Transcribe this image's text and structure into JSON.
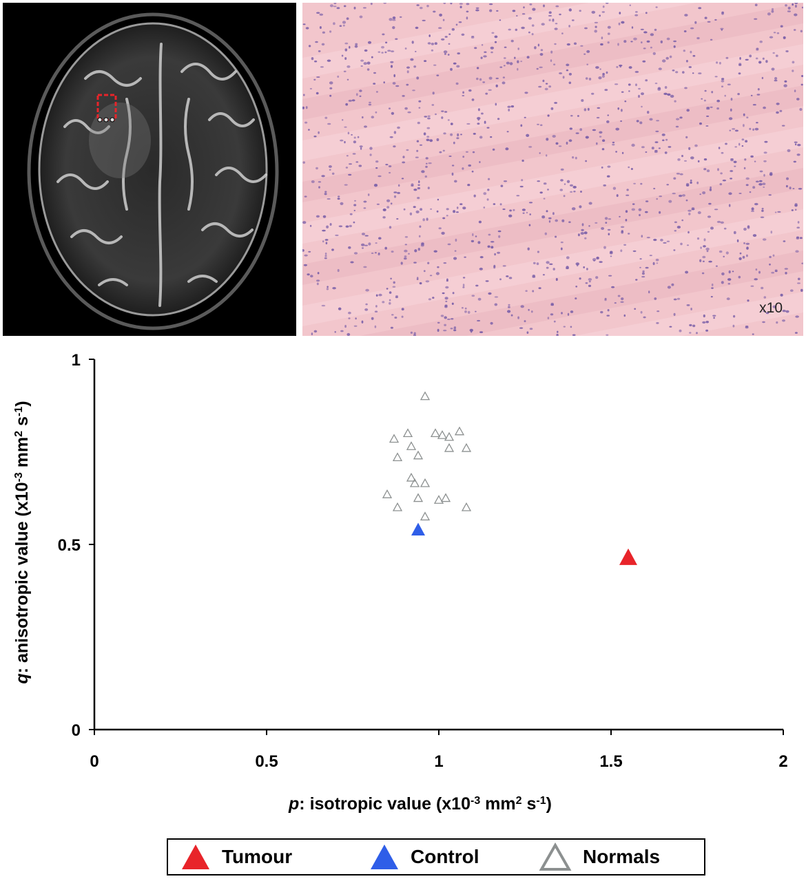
{
  "mri_image": {
    "description_icon": "brain-mri-axial-icon",
    "roi_color": "#e8242a"
  },
  "histology_image": {
    "magnification_label": "x10",
    "stain_color": "#f2c6cc",
    "nuclei_color": "#7a5fa8"
  },
  "chart_data": {
    "type": "scatter",
    "xlabel_italic": "p",
    "xlabel_rest": ": isotropic value (x10",
    "xlabel_sup1": "-3",
    "xlabel_mid": " mm",
    "xlabel_sup2": "2",
    "xlabel_s": " s",
    "xlabel_sup3": "-1",
    "xlabel_end": ")",
    "ylabel_italic": "q",
    "ylabel_rest": ": anisotropic value (x10",
    "ylabel_sup1": "-3",
    "ylabel_mid": " mm",
    "ylabel_sup2": "2",
    "ylabel_s": " s",
    "ylabel_sup3": "-1",
    "ylabel_end": ")",
    "xlim": [
      0,
      2
    ],
    "ylim": [
      0,
      1
    ],
    "x_ticks": [
      0,
      0.5,
      1,
      1.5,
      2
    ],
    "x_tick_labels": [
      "0",
      "0.5",
      "1",
      "1.5",
      "2"
    ],
    "y_ticks": [
      0,
      0.5,
      1
    ],
    "y_tick_labels": [
      "0",
      "0.5",
      "1"
    ],
    "grid": false,
    "legend_position": "bottom",
    "series": [
      {
        "name": "Tumour",
        "marker": "filled-triangle",
        "color": "#e8242a",
        "points": [
          [
            1.55,
            0.465
          ]
        ]
      },
      {
        "name": "Control",
        "marker": "filled-triangle",
        "color": "#2f5ee8",
        "points": [
          [
            0.94,
            0.54
          ]
        ]
      },
      {
        "name": "Normals",
        "marker": "hollow-triangle",
        "color": "#8c9090",
        "points": [
          [
            0.96,
            0.9
          ],
          [
            0.87,
            0.785
          ],
          [
            0.91,
            0.8
          ],
          [
            0.99,
            0.8
          ],
          [
            1.01,
            0.795
          ],
          [
            1.03,
            0.79
          ],
          [
            1.06,
            0.805
          ],
          [
            0.92,
            0.765
          ],
          [
            1.03,
            0.76
          ],
          [
            1.08,
            0.76
          ],
          [
            0.88,
            0.735
          ],
          [
            0.94,
            0.74
          ],
          [
            0.92,
            0.68
          ],
          [
            0.93,
            0.665
          ],
          [
            0.96,
            0.665
          ],
          [
            0.85,
            0.635
          ],
          [
            0.94,
            0.625
          ],
          [
            1.0,
            0.62
          ],
          [
            1.02,
            0.625
          ],
          [
            0.88,
            0.6
          ],
          [
            1.08,
            0.6
          ],
          [
            0.96,
            0.575
          ]
        ]
      }
    ]
  }
}
